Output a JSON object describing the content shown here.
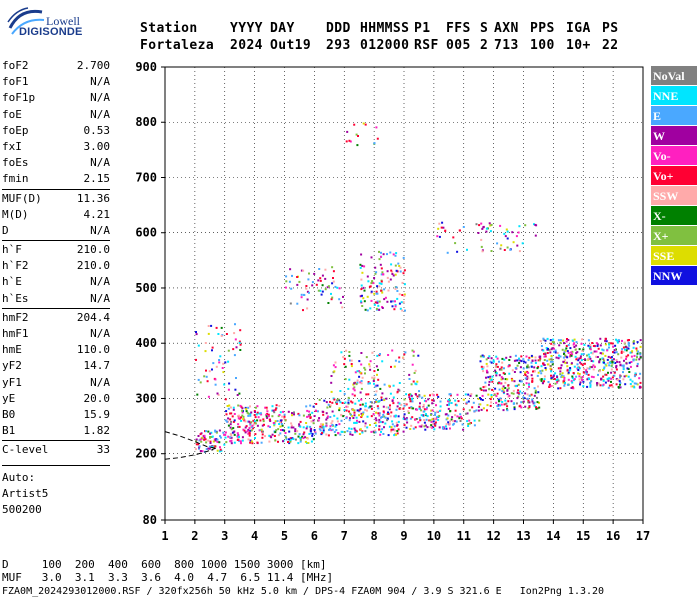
{
  "logo": {
    "line1": "Lowell",
    "line2": "DIGISONDE"
  },
  "header": {
    "labels": [
      "Station",
      "YYYY",
      "DAY",
      "DDD",
      "HHMMSS",
      "P1",
      "FFS",
      "S",
      "AXN",
      "PPS",
      "IGA",
      "PS"
    ],
    "values": [
      "Fortaleza",
      "2024",
      "Out19",
      "293",
      "012000",
      "RSF",
      "005",
      "2",
      "713",
      "100",
      "10+",
      "22"
    ]
  },
  "params": [
    [
      [
        "foF2",
        "2.700"
      ],
      [
        "foF1",
        "N/A"
      ],
      [
        "foF1p",
        "N/A"
      ],
      [
        "foE",
        "N/A"
      ],
      [
        "foEp",
        "0.53"
      ],
      [
        "fxI",
        "3.00"
      ],
      [
        "foEs",
        "N/A"
      ],
      [
        "fmin",
        "2.15"
      ]
    ],
    [
      [
        "MUF(D)",
        "11.36"
      ],
      [
        "M(D)",
        "4.21"
      ],
      [
        "D",
        "N/A"
      ]
    ],
    [
      [
        "h`F",
        "210.0"
      ],
      [
        "h`F2",
        "210.0"
      ],
      [
        "h`E",
        "N/A"
      ],
      [
        "h`Es",
        "N/A"
      ]
    ],
    [
      [
        "hmF2",
        "204.4"
      ],
      [
        "hmF1",
        "N/A"
      ],
      [
        "hmE",
        "110.0"
      ],
      [
        "yF2",
        "14.7"
      ],
      [
        "yF1",
        "N/A"
      ],
      [
        "yE",
        "20.0"
      ],
      [
        "B0",
        "15.9"
      ],
      [
        "B1",
        "1.82"
      ]
    ],
    [
      [
        "C-level",
        "33"
      ]
    ]
  ],
  "auto": [
    "Auto:",
    "Artist5",
    "500200"
  ],
  "legend": [
    {
      "label": "NoVal",
      "color": "#808080"
    },
    {
      "label": "NNE",
      "color": "#00e5ff"
    },
    {
      "label": "E",
      "color": "#4aa8ff"
    },
    {
      "label": "W",
      "color": "#a000a0"
    },
    {
      "label": "Vo-",
      "color": "#ff20c0"
    },
    {
      "label": "Vo+",
      "color": "#ff0033"
    },
    {
      "label": "SSW",
      "color": "#ffaaaa"
    },
    {
      "label": "X-",
      "color": "#008000"
    },
    {
      "label": "X+",
      "color": "#80c040"
    },
    {
      "label": "SSE",
      "color": "#dddd00"
    },
    {
      "label": "NNW",
      "color": "#1010e0"
    }
  ],
  "footer": {
    "line1": "D     100  200  400  600  800 1000 1500 3000 [km]",
    "line2": "MUF   3.0  3.1  3.3  3.6  4.0  4.7  6.5 11.4 [MHz]",
    "line3": "FZA0M_2024293012000.RSF / 320fx256h 50 kHz 5.0 km / DPS-4 FZA0M 904 / 3.9 S 321.6 E   Ion2Png 1.3.20"
  },
  "chart_data": {
    "type": "scatter",
    "x_range": [
      1,
      17
    ],
    "y_range": [
      80,
      900
    ],
    "x_ticks": [
      1,
      2,
      3,
      4,
      5,
      6,
      7,
      8,
      9,
      10,
      11,
      12,
      13,
      14,
      15,
      16,
      17
    ],
    "y_ticks": [
      80,
      200,
      300,
      400,
      500,
      600,
      700,
      800,
      900
    ],
    "grid": true,
    "legend_position": "right",
    "trace_bands": [
      {
        "x0": 2.0,
        "x1": 3.0,
        "y0": 205,
        "y1": 245,
        "density": 0.9
      },
      {
        "x0": 3.0,
        "x1": 6.0,
        "y0": 220,
        "y1": 290,
        "density": 0.75
      },
      {
        "x0": 6.0,
        "x1": 9.0,
        "y0": 235,
        "y1": 300,
        "density": 0.7
      },
      {
        "x0": 9.0,
        "x1": 11.5,
        "y0": 245,
        "y1": 310,
        "density": 0.65
      },
      {
        "x0": 11.5,
        "x1": 13.5,
        "y0": 280,
        "y1": 380,
        "density": 0.7
      },
      {
        "x0": 13.5,
        "x1": 16.9,
        "y0": 320,
        "y1": 410,
        "density": 0.85
      },
      {
        "x0": 6.5,
        "x1": 9.5,
        "y0": 300,
        "y1": 390,
        "density": 0.25
      },
      {
        "x0": 7.5,
        "x1": 9.0,
        "y0": 460,
        "y1": 570,
        "density": 0.4
      },
      {
        "x0": 5.0,
        "x1": 7.0,
        "y0": 460,
        "y1": 540,
        "density": 0.2
      },
      {
        "x0": 10.0,
        "x1": 13.5,
        "y0": 560,
        "y1": 620,
        "density": 0.15
      },
      {
        "x0": 7.0,
        "x1": 8.2,
        "y0": 760,
        "y1": 800,
        "density": 0.15
      },
      {
        "x0": 2.0,
        "x1": 3.5,
        "y0": 300,
        "y1": 440,
        "density": 0.15
      }
    ],
    "profile_curve": {
      "x": [
        1.0,
        1.5,
        2.0,
        2.4,
        2.7
      ],
      "y": [
        190,
        193,
        198,
        204,
        210
      ]
    },
    "profile_curve2": {
      "x": [
        1.0,
        1.5,
        2.0,
        2.4,
        2.7
      ],
      "y": [
        240,
        232,
        222,
        213,
        210
      ]
    }
  }
}
